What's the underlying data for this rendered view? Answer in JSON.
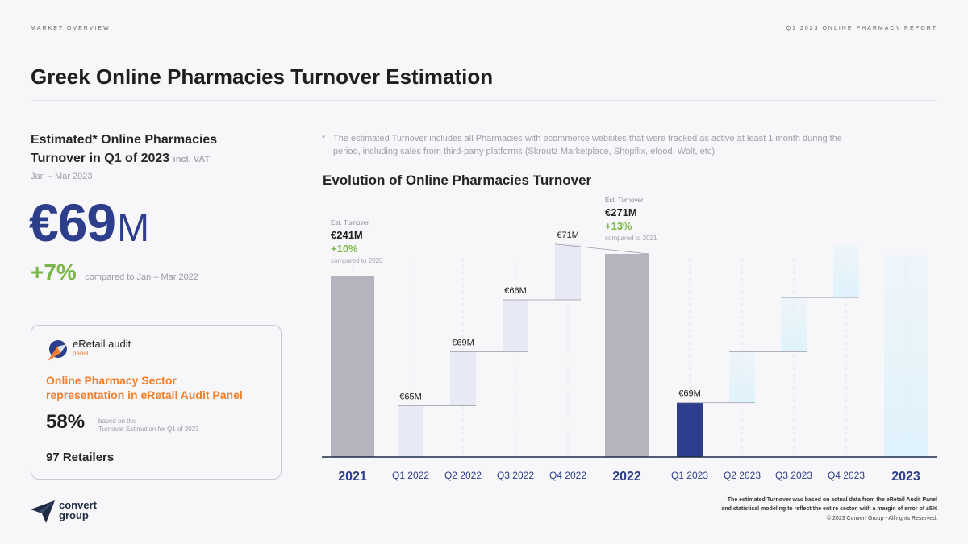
{
  "header": {
    "section": "MARKET OVERVIEW",
    "report": "Q1 2023 ONLINE PHARMACY REPORT",
    "title": "Greek Online Pharmacies Turnover Estimation"
  },
  "estimate": {
    "title_line1": "Estimated* Online Pharmacies",
    "title_line2": "Turnover in Q1 of 2023",
    "vat_note": "incl. VAT",
    "period": "Jan – Mar 2023",
    "currency": "€",
    "value": "69",
    "unit": "M",
    "growth": "+7%",
    "growth_note": "compared to Jan – Mar 2022"
  },
  "panel": {
    "brand": "eRetail audit",
    "brand_sub": "panel",
    "heading_line1": "Online Pharmacy Sector",
    "heading_line2": "representation in eRetail Audit Panel",
    "pct": "58%",
    "note_line1": "based on the",
    "note_line2": "Turnover Estimation for Q1 of 2023",
    "retailers": "97 Retailers"
  },
  "company": {
    "line1": "convert",
    "line2": "group"
  },
  "footnote": {
    "star": "*",
    "text": "The estimated Turnover includes all Pharmacies with ecommerce websites that were tracked as active at least 1 month during the period, including sales from third-party platforms (Skroutz Marketplace, Shopflix, efood, Wolt, etc)"
  },
  "chart_title": "Evolution of Online Pharmacies Turnover",
  "footer": {
    "method_line1": "The estimated Turnover was based on actual data from the eRetail Audit Panel",
    "method_line2": "and statistical modeling to reflect the entire sector, with a margin of error of ±5%",
    "copyright": "© 2023 Convert Group - All rights Reserved."
  },
  "colors": {
    "accent_blue": "#2c3e8c",
    "growth_green": "#7ab648",
    "orange": "#f07f2c",
    "total_gray": "#b3b4bd",
    "quarter_2022": "#e7eaf4",
    "forecast_blue": "#dff2fb"
  },
  "chart_data": {
    "type": "bar",
    "subtype": "waterfall",
    "title": "Evolution of Online Pharmacies Turnover",
    "unit": "€M",
    "categories": [
      "2021",
      "Q1 2022",
      "Q2 2022",
      "Q3 2022",
      "Q4 2022",
      "2022",
      "Q1 2023",
      "Q2 2023",
      "Q3 2023",
      "Q4 2023",
      "2023"
    ],
    "bars": [
      {
        "category": "2021",
        "kind": "total",
        "value": 241,
        "label": "€241M",
        "pre_label": "Est. Turnover",
        "growth": "+10%",
        "growth_note": "compared to 2020"
      },
      {
        "category": "Q1 2022",
        "kind": "quarter",
        "value": 65,
        "label": "€65M"
      },
      {
        "category": "Q2 2022",
        "kind": "quarter",
        "value": 69,
        "label": "€69M"
      },
      {
        "category": "Q3 2022",
        "kind": "quarter",
        "value": 66,
        "label": "€66M"
      },
      {
        "category": "Q4 2022",
        "kind": "quarter",
        "value": 71,
        "label": "€71M"
      },
      {
        "category": "2022",
        "kind": "total",
        "value": 271,
        "label": "€271M",
        "pre_label": "Est. Turnover",
        "growth": "+13%",
        "growth_note": "compared to 2021"
      },
      {
        "category": "Q1 2023",
        "kind": "actual",
        "value": 69,
        "label": "€69M"
      },
      {
        "category": "Q2 2023",
        "kind": "forecast",
        "value": 65,
        "label": ""
      },
      {
        "category": "Q3 2023",
        "kind": "forecast",
        "value": 69,
        "label": ""
      },
      {
        "category": "Q4 2023",
        "kind": "forecast",
        "value": 66,
        "label": ""
      },
      {
        "category": "2023",
        "kind": "forecast_total",
        "value": 269,
        "label": ""
      }
    ],
    "bold_categories": [
      "2021",
      "2022",
      "2023"
    ]
  }
}
